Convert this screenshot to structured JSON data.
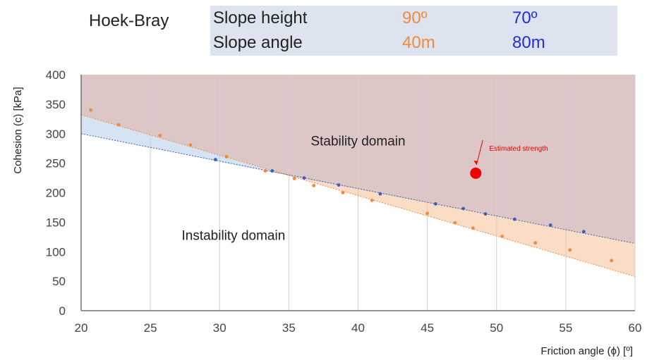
{
  "legend": {
    "title": "Hoek-Bray",
    "rows": [
      {
        "label": "Slope height",
        "orange": "90º",
        "blue": "70º"
      },
      {
        "label": "Slope angle",
        "orange": "40m",
        "blue": "80m"
      }
    ]
  },
  "chart_data": {
    "type": "scatter",
    "xlabel": "Friction angle (ϕ) [º]",
    "ylabel": "Cohesion (c) [kPa]",
    "xlim": [
      20,
      60
    ],
    "ylim": [
      0,
      400
    ],
    "xticks": [
      20,
      25,
      30,
      35,
      40,
      45,
      50,
      55,
      60
    ],
    "yticks": [
      0,
      50,
      100,
      150,
      200,
      250,
      300,
      350,
      400
    ],
    "grid": "vertical",
    "colors": {
      "orange": "#f08a3c",
      "blue": "#3a5fb5",
      "stability_fill": "#ddc6c6",
      "orange_band": "#fbdcc4",
      "blue_band": "#d6e3f3",
      "estimate": "#ee0000"
    },
    "series": [
      {
        "color": "orange",
        "points": [
          [
            20.7,
            340
          ],
          [
            22.7,
            315
          ],
          [
            25.7,
            297
          ],
          [
            27.9,
            281
          ],
          [
            30.5,
            261
          ],
          [
            33.3,
            237
          ],
          [
            35.4,
            224
          ],
          [
            36.8,
            212
          ],
          [
            38.9,
            200
          ],
          [
            41,
            187
          ],
          [
            45,
            165
          ],
          [
            47,
            149
          ],
          [
            48.3,
            140
          ],
          [
            50.4,
            126
          ],
          [
            52.8,
            115
          ],
          [
            55.3,
            103
          ],
          [
            58.3,
            85
          ]
        ]
      },
      {
        "color": "blue",
        "points": [
          [
            29.7,
            256
          ],
          [
            33.8,
            237
          ],
          [
            36.1,
            225
          ],
          [
            38.6,
            213
          ],
          [
            41.6,
            198
          ],
          [
            45.6,
            181
          ],
          [
            47.6,
            173
          ],
          [
            49.2,
            164
          ],
          [
            51.3,
            155
          ],
          [
            53.9,
            145
          ],
          [
            56.3,
            134
          ]
        ]
      }
    ],
    "fit_lines": [
      {
        "color": "orange",
        "x": [
          20,
          60
        ],
        "y": [
          332,
          58
        ]
      },
      {
        "color": "blue",
        "x": [
          20,
          60
        ],
        "y": [
          300,
          114
        ]
      }
    ],
    "envelope": {
      "x": [
        20,
        35.2,
        60
      ],
      "y": [
        332,
        228,
        114
      ]
    },
    "estimate_point": {
      "x": 48.5,
      "y": 233,
      "label": "Estimated strength"
    },
    "annotations": [
      {
        "text": "Stability domain",
        "x": 40,
        "y": 280
      },
      {
        "text": "Instability domain",
        "x": 31,
        "y": 120
      }
    ]
  }
}
